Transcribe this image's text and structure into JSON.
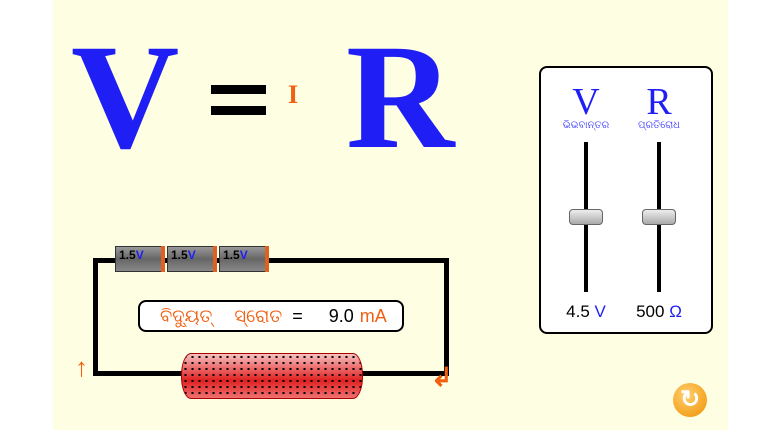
{
  "equation": {
    "v": "V",
    "equals": "=",
    "i": "I",
    "r": "R"
  },
  "sliders": {
    "voltage": {
      "symbol": "V",
      "label": "ଭିଭବାନ୍ତର",
      "value": "4.5",
      "unit": "V",
      "fraction": 0.5
    },
    "resistance": {
      "symbol": "R",
      "label": "ପ୍ରତିରୋଧ",
      "value": "500",
      "unit": "Ω",
      "fraction": 0.5
    }
  },
  "batteries": [
    {
      "value": "1.5",
      "unit": "V"
    },
    {
      "value": "1.5",
      "unit": "V"
    },
    {
      "value": "1.5",
      "unit": "V"
    }
  ],
  "current": {
    "label_1": "ବିଦ୍ୟୁତ୍",
    "label_2": "ସ୍ରୋତ",
    "equals": "=",
    "value": "9.0",
    "unit": "mA"
  },
  "colors": {
    "background": "#fefee2",
    "accent": "#1f1ff5",
    "orange": "#f06010"
  },
  "icons": {
    "reset": "reset-icon",
    "arrows": "current-direction-arrow-icon"
  }
}
